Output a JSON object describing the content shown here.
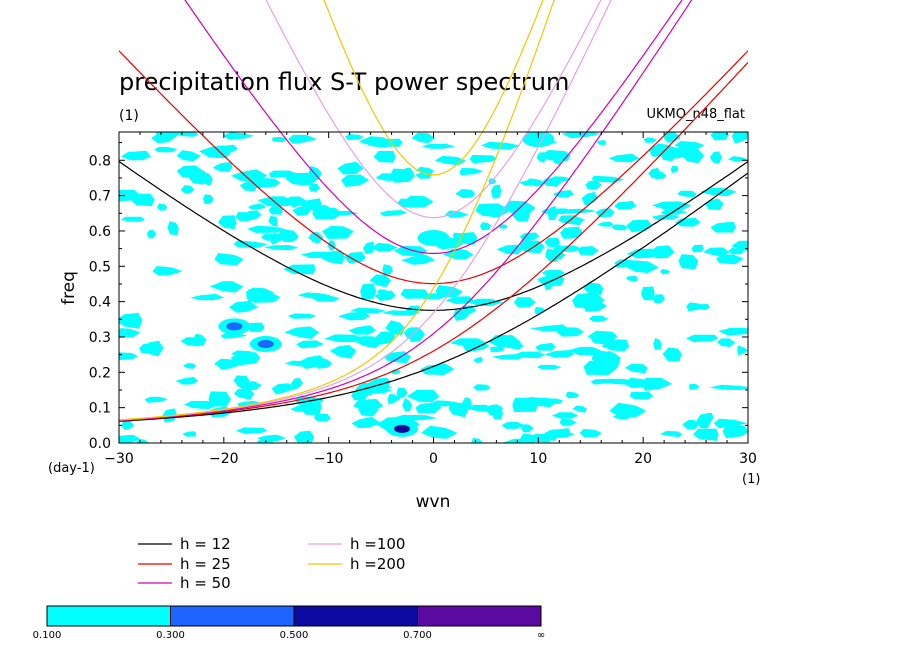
{
  "chart_data": {
    "type": "heatmap",
    "title": "precipitation flux S-T power spectrum",
    "subtitle_left": "(1)",
    "subtitle_right": "UKMO_n48_flat",
    "xlabel": "wvn",
    "ylabel": "freq",
    "x_units": "(1)",
    "y_units": "(day-1)",
    "xlim": [
      -30,
      30
    ],
    "ylim": [
      0,
      0.88
    ],
    "x_ticks": [
      "−30",
      "−20",
      "−10",
      "0",
      "10",
      "20",
      "30"
    ],
    "x_tick_values": [
      -30,
      -20,
      -10,
      0,
      10,
      20,
      30
    ],
    "y_ticks": [
      "0.0",
      "0.1",
      "0.2",
      "0.3",
      "0.4",
      "0.5",
      "0.6",
      "0.7",
      "0.8"
    ],
    "y_tick_values": [
      0,
      0.1,
      0.2,
      0.3,
      0.4,
      0.5,
      0.6,
      0.7,
      0.8
    ],
    "contour_levels": [
      "0.100",
      "0.300",
      "0.500",
      "0.700",
      "∞"
    ],
    "level_colors": [
      "#00ffff",
      "#1e64ff",
      "#0a0aa0",
      "#5a0aa0"
    ],
    "dispersion_curves": [
      {
        "label": "h = 12",
        "h": 12,
        "color": "#000000"
      },
      {
        "label": "h = 25",
        "h": 25,
        "color": "#e60000"
      },
      {
        "label": "h = 50",
        "h": 50,
        "color": "#d200b4"
      },
      {
        "label": "h =100",
        "h": 100,
        "color": "#e6a0e6"
      },
      {
        "label": "h =200",
        "h": 200,
        "color": "#f0c800"
      }
    ],
    "notable_features": [
      {
        "x": -3,
        "y": 0.04,
        "level": 0.6
      },
      {
        "x": -16,
        "y": 0.28,
        "level": 0.4
      },
      {
        "x": -19,
        "y": 0.33,
        "level": 0.35
      },
      {
        "x": 0,
        "y": 0.58,
        "level": 0.3
      },
      {
        "x": 10,
        "y": 0.86,
        "level": 0.3
      }
    ]
  }
}
